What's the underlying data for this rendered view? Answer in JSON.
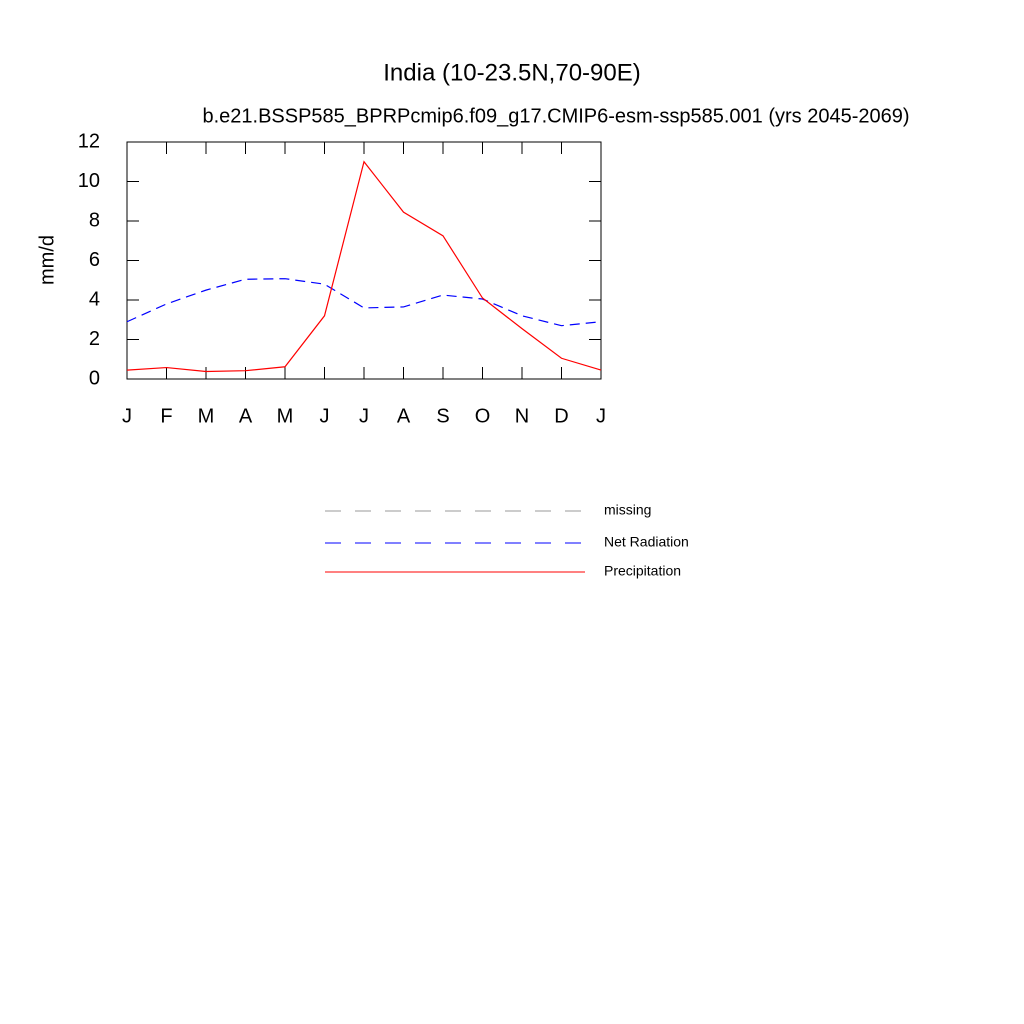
{
  "chart_data": {
    "type": "line",
    "title": "India (10-23.5N,70-90E)",
    "subtitle": "b.e21.BSSP585_BPRPcmip6.f09_g17.CMIP6-esm-ssp585.001 (yrs 2045-2069)",
    "ylabel": "mm/d",
    "categories": [
      "J",
      "F",
      "M",
      "A",
      "M",
      "J",
      "J",
      "A",
      "S",
      "O",
      "N",
      "D",
      "J"
    ],
    "series": [
      {
        "name": "missing",
        "color": "#999999",
        "dashed": true,
        "values": [
          null,
          null,
          null,
          null,
          null,
          null,
          null,
          null,
          null,
          null,
          null,
          null,
          null
        ]
      },
      {
        "name": "Net Radiation",
        "color": "#0000ff",
        "dashed": true,
        "values": [
          2.9,
          3.8,
          4.5,
          5.05,
          5.08,
          4.8,
          3.6,
          3.65,
          4.25,
          4.05,
          3.2,
          2.7,
          2.9
        ]
      },
      {
        "name": "Precipitation",
        "color": "#ff0000",
        "dashed": false,
        "values": [
          0.45,
          0.58,
          0.38,
          0.42,
          0.62,
          3.2,
          11.0,
          8.45,
          7.25,
          4.1,
          2.55,
          1.05,
          0.45
        ]
      }
    ],
    "ylim": [
      0,
      12
    ],
    "yticks": [
      0,
      2,
      4,
      6,
      8,
      10,
      12
    ],
    "grid": false
  }
}
